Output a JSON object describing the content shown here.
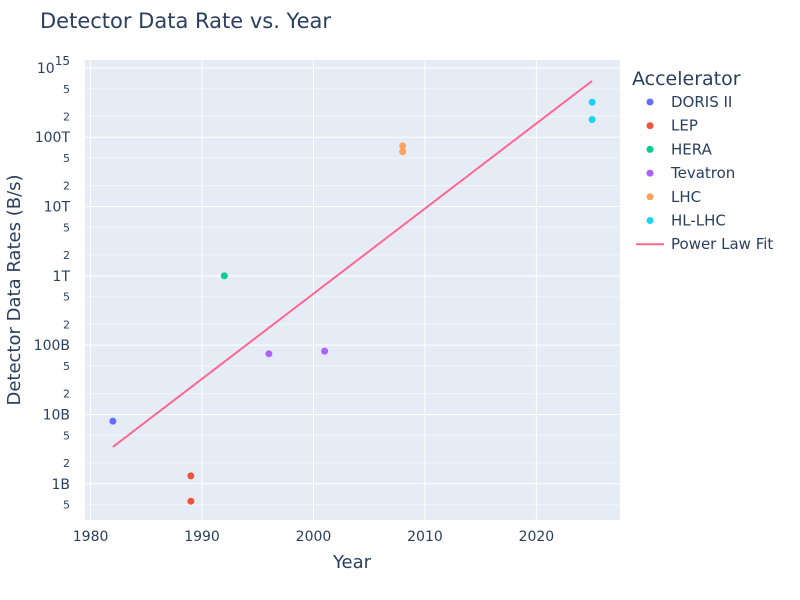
{
  "chart_data": {
    "type": "scatter",
    "title": "Detector Data Rate vs. Year",
    "xlabel": "Year",
    "ylabel": "Detector Data Rates (B/s)",
    "xlim": [
      1979.5,
      2027.5
    ],
    "ylim": [
      300000000,
      1300000000000000.0
    ],
    "yscale": "log",
    "grid": true,
    "legend_title": "Accelerator",
    "legend_position": "right",
    "x_ticks": [
      1980,
      1990,
      2000,
      2010,
      2020
    ],
    "x_tick_labels": [
      "1980",
      "1990",
      "2000",
      "2010",
      "2020"
    ],
    "y_major_ticks": [
      {
        "value": 1000000000.0,
        "label": "1B"
      },
      {
        "value": 10000000000.0,
        "label": "10B"
      },
      {
        "value": 100000000000.0,
        "label": "100B"
      },
      {
        "value": 1000000000000.0,
        "label": "1T"
      },
      {
        "value": 10000000000000.0,
        "label": "10T"
      },
      {
        "value": 100000000000000.0,
        "label": "100T"
      },
      {
        "value": 1000000000000000.0,
        "label": "10",
        "exponent": "15"
      }
    ],
    "y_minor_ticks": [
      {
        "value": 500000000.0,
        "label": "5"
      },
      {
        "value": 2000000000.0,
        "label": "2"
      },
      {
        "value": 5000000000.0,
        "label": "5"
      },
      {
        "value": 20000000000.0,
        "label": "2"
      },
      {
        "value": 50000000000.0,
        "label": "5"
      },
      {
        "value": 200000000000.0,
        "label": "2"
      },
      {
        "value": 500000000000.0,
        "label": "5"
      },
      {
        "value": 2000000000000.0,
        "label": "2"
      },
      {
        "value": 5000000000000.0,
        "label": "5"
      },
      {
        "value": 20000000000000.0,
        "label": "2"
      },
      {
        "value": 50000000000000.0,
        "label": "5"
      },
      {
        "value": 200000000000000.0,
        "label": "2"
      },
      {
        "value": 500000000000000.0,
        "label": "5"
      }
    ],
    "series": [
      {
        "name": "DORIS II",
        "color": "#636efa",
        "mode": "markers",
        "points": [
          {
            "x": 1982,
            "y": 8000000000
          }
        ]
      },
      {
        "name": "LEP",
        "color": "#ef553b",
        "mode": "markers",
        "points": [
          {
            "x": 1989,
            "y": 1300000000
          },
          {
            "x": 1989,
            "y": 560000000
          }
        ]
      },
      {
        "name": "HERA",
        "color": "#00cc96",
        "mode": "markers",
        "points": [
          {
            "x": 1992,
            "y": 1000000000000
          }
        ]
      },
      {
        "name": "Tevatron",
        "color": "#ab63fa",
        "mode": "markers",
        "points": [
          {
            "x": 1996,
            "y": 75000000000
          },
          {
            "x": 2001,
            "y": 82000000000
          }
        ]
      },
      {
        "name": "LHC",
        "color": "#ffa15a",
        "mode": "markers",
        "points": [
          {
            "x": 2008,
            "y": 75000000000000
          },
          {
            "x": 2008,
            "y": 62000000000000
          }
        ]
      },
      {
        "name": "HL-LHC",
        "color": "#19d3f3",
        "mode": "markers",
        "points": [
          {
            "x": 2025,
            "y": 320000000000000
          },
          {
            "x": 2025,
            "y": 180000000000000
          }
        ]
      },
      {
        "name": "Power Law Fit",
        "color": "#ff6692",
        "mode": "line",
        "points": [
          {
            "x": 1982,
            "y": 3400000000
          },
          {
            "x": 2025,
            "y": 650000000000000
          }
        ]
      }
    ]
  }
}
